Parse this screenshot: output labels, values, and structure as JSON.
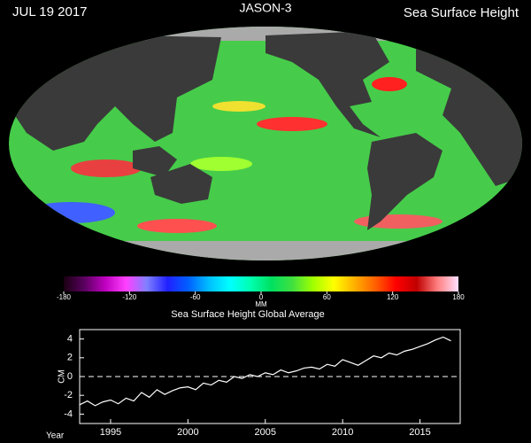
{
  "header": {
    "date": "JUL 19  2017",
    "mission": "JASON-3",
    "product": "Sea Surface Height"
  },
  "chart_data": [
    {
      "type": "colorbar",
      "axis_label": "MM",
      "xlim": [
        -180,
        180
      ],
      "xticks": [
        -180,
        -120,
        -60,
        0,
        60,
        120,
        180
      ],
      "colors": [
        "#1a0010",
        "#5a0060",
        "#c000c0",
        "#ff40ff",
        "#8080ff",
        "#2020ff",
        "#0060ff",
        "#00c0ff",
        "#00ffff",
        "#00ffb0",
        "#00e060",
        "#40e040",
        "#a0ff00",
        "#ffff00",
        "#ffb000",
        "#ff6000",
        "#ff0000",
        "#c00000",
        "#ff8080",
        "#ffe0ff"
      ]
    },
    {
      "type": "line",
      "title": "Sea Surface Height Global Average",
      "y_label": "CM",
      "x_label": "Year",
      "xlim": [
        1993,
        2017.6
      ],
      "ylim": [
        -5,
        5
      ],
      "xticks": [
        1995,
        2000,
        2005,
        2010,
        2015
      ],
      "yticks": [
        -4,
        -2,
        0,
        2,
        4
      ],
      "reference_line": 0,
      "series": [
        {
          "color": "#ffffff",
          "x": [
            1993,
            1993.5,
            1994,
            1994.5,
            1995,
            1995.5,
            1996,
            1996.5,
            1997,
            1997.5,
            1998,
            1998.5,
            1999,
            1999.5,
            2000,
            2000.5,
            2001,
            2001.5,
            2002,
            2002.5,
            2003,
            2003.5,
            2004,
            2004.5,
            2005,
            2005.5,
            2006,
            2006.5,
            2007,
            2007.5,
            2008,
            2008.5,
            2009,
            2009.5,
            2010,
            2010.5,
            2011,
            2011.5,
            2012,
            2012.5,
            2013,
            2013.5,
            2014,
            2014.5,
            2015,
            2015.5,
            2016,
            2016.5,
            2017
          ],
          "values": [
            -3.0,
            -2.6,
            -3.1,
            -2.7,
            -2.5,
            -2.9,
            -2.3,
            -2.6,
            -1.7,
            -2.2,
            -1.4,
            -1.9,
            -1.5,
            -1.2,
            -1.1,
            -1.4,
            -0.7,
            -0.9,
            -0.4,
            -0.6,
            0.0,
            -0.2,
            0.2,
            0.0,
            0.4,
            0.2,
            0.7,
            0.4,
            0.6,
            0.9,
            1.0,
            0.8,
            1.3,
            1.1,
            1.8,
            1.5,
            1.2,
            1.7,
            2.2,
            2.0,
            2.5,
            2.3,
            2.7,
            2.9,
            3.2,
            3.5,
            3.9,
            4.2,
            3.8
          ]
        }
      ]
    }
  ]
}
